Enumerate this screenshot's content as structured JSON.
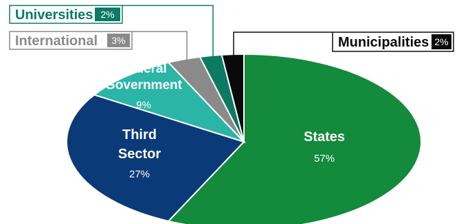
{
  "chart_data": {
    "type": "pie",
    "title": "",
    "slices": [
      {
        "label": "States",
        "value": 57,
        "value_text": "57%",
        "color": "#138a3c"
      },
      {
        "label": "Third Sector",
        "value": 27,
        "value_text": "27%",
        "color": "#0b3a78"
      },
      {
        "label": "Federal Government",
        "value": 9,
        "value_text": "9%",
        "color": "#2bb5a6"
      },
      {
        "label": "International",
        "value": 3,
        "value_text": "3%",
        "color": "#8a8a8a"
      },
      {
        "label": "Universities",
        "value": 2,
        "value_text": "2%",
        "color": "#0c7a63"
      },
      {
        "label": "Municipalities",
        "value": 2,
        "value_text": "2%",
        "color": "#0a0a0a"
      }
    ],
    "label_lines": {
      "States": [
        "States"
      ],
      "Third Sector": [
        "Third",
        "Sector"
      ],
      "Federal Government": [
        "Federal",
        "Government"
      ]
    },
    "legend": "callouts"
  }
}
